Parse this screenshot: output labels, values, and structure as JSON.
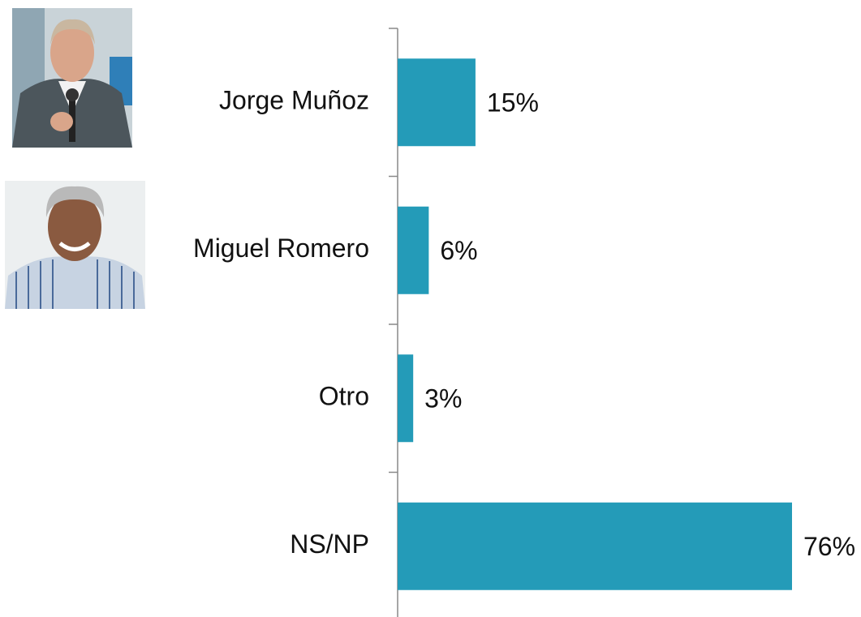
{
  "chart_data": {
    "type": "bar",
    "orientation": "horizontal",
    "categories": [
      "Jorge Muñoz",
      "Miguel Romero",
      "Otro",
      "NS/NP"
    ],
    "values": [
      15,
      6,
      3,
      76
    ],
    "value_labels": [
      "15%",
      "6%",
      "3%",
      "76%"
    ],
    "color": "#249bb8"
  }
}
